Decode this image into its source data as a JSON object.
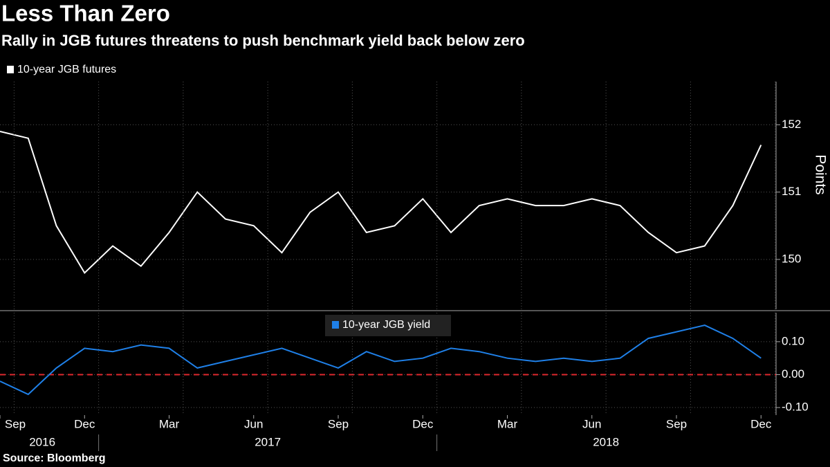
{
  "title": "Less Than Zero",
  "subtitle": "Rally in JGB futures threatens to push benchmark yield back below zero",
  "source": "Source: Bloomberg",
  "x_years": [
    "2016",
    "2017",
    "2018"
  ],
  "chart_data": [
    {
      "type": "line",
      "y_label": "Points",
      "x": [
        "2016-09",
        "2016-10",
        "2016-11",
        "2016-12",
        "2017-01",
        "2017-02",
        "2017-03",
        "2017-04",
        "2017-05",
        "2017-06",
        "2017-07",
        "2017-08",
        "2017-09",
        "2017-10",
        "2017-11",
        "2017-12",
        "2018-01",
        "2018-02",
        "2018-03",
        "2018-04",
        "2018-05",
        "2018-06",
        "2018-07",
        "2018-08",
        "2018-09",
        "2018-10",
        "2018-11",
        "2018-12"
      ],
      "series": [
        {
          "name": "10-year JGB futures",
          "color": "#ffffff",
          "values": [
            151.9,
            151.8,
            150.5,
            149.8,
            150.2,
            149.9,
            150.4,
            151.0,
            150.6,
            150.5,
            150.1,
            150.7,
            151.0,
            150.4,
            150.5,
            150.9,
            150.4,
            150.8,
            150.9,
            150.8,
            150.8,
            150.9,
            150.8,
            150.4,
            150.1,
            150.2,
            150.8,
            151.7
          ]
        }
      ],
      "xlim": [
        "2016-09",
        "2018-12"
      ],
      "ylim": [
        149.26,
        152.64
      ],
      "yticks": [
        150,
        151,
        152
      ],
      "grid": true
    },
    {
      "type": "line",
      "x": [
        "2016-09",
        "2016-10",
        "2016-11",
        "2016-12",
        "2017-01",
        "2017-02",
        "2017-03",
        "2017-04",
        "2017-05",
        "2017-06",
        "2017-07",
        "2017-08",
        "2017-09",
        "2017-10",
        "2017-11",
        "2017-12",
        "2018-01",
        "2018-02",
        "2018-03",
        "2018-04",
        "2018-05",
        "2018-06",
        "2018-07",
        "2018-08",
        "2018-09",
        "2018-10",
        "2018-11",
        "2018-12"
      ],
      "series": [
        {
          "name": "10-year JGB yield",
          "color": "#1f80e8",
          "values": [
            -0.02,
            -0.06,
            0.02,
            0.08,
            0.07,
            0.09,
            0.08,
            0.02,
            0.04,
            0.06,
            0.08,
            0.05,
            0.02,
            0.07,
            0.04,
            0.05,
            0.08,
            0.07,
            0.05,
            0.04,
            0.05,
            0.04,
            0.05,
            0.11,
            0.13,
            0.15,
            0.11,
            0.05
          ]
        }
      ],
      "xlim": [
        "2016-09",
        "2018-12"
      ],
      "ylim": [
        -0.123,
        0.188
      ],
      "yticks": [
        {
          "value": 0.1,
          "label": "0.10"
        },
        {
          "value": 0,
          "label": "0.00"
        },
        {
          "value": -0.1,
          "label": "-0.10"
        }
      ],
      "reference_line": {
        "value": 0,
        "color": "#e0282e"
      },
      "xticks": [
        {
          "value": "2016-09",
          "label": "Sep"
        },
        {
          "value": "2016-12",
          "label": "Dec"
        },
        {
          "value": "2017-03",
          "label": "Mar"
        },
        {
          "value": "2017-06",
          "label": "Jun"
        },
        {
          "value": "2017-09",
          "label": "Sep"
        },
        {
          "value": "2017-12",
          "label": "Dec"
        },
        {
          "value": "2018-03",
          "label": "Mar"
        },
        {
          "value": "2018-06",
          "label": "Jun"
        },
        {
          "value": "2018-09",
          "label": "Sep"
        },
        {
          "value": "2018-12",
          "label": "Dec"
        }
      ]
    }
  ]
}
